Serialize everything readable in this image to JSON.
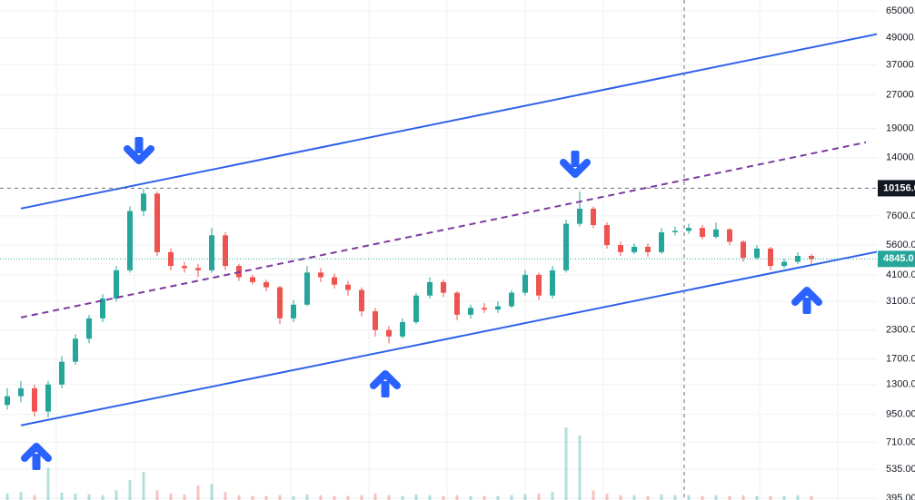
{
  "chart_data": {
    "type": "candlestick",
    "log_scale": true,
    "grid": true,
    "up_color": "#26a69a",
    "down_color": "#ef5350",
    "ylim": [
      388,
      72900
    ],
    "yticks": [
      {
        "value": 65000,
        "label": "65000."
      },
      {
        "value": 49000,
        "label": "49000."
      },
      {
        "value": 37000,
        "label": "37000.0"
      },
      {
        "value": 27000,
        "label": "27000.0"
      },
      {
        "value": 19000,
        "label": "19000."
      },
      {
        "value": 14000,
        "label": "14000.0"
      },
      {
        "value": 7600,
        "label": "7600.00"
      },
      {
        "value": 5600,
        "label": "5600.00"
      },
      {
        "value": 4100,
        "label": "4100.00"
      },
      {
        "value": 3100,
        "label": "3100.00"
      },
      {
        "value": 2300,
        "label": "2300.00"
      },
      {
        "value": 1700,
        "label": "1700.00"
      },
      {
        "value": 1300,
        "label": "1300.00"
      },
      {
        "value": 950,
        "label": "950.00"
      },
      {
        "value": 710,
        "label": "710.00"
      },
      {
        "value": 535,
        "label": "535.00"
      },
      {
        "value": 395,
        "label": "395.00"
      }
    ],
    "open": [
      1050,
      1150,
      1250,
      980,
      1300,
      1650,
      2100,
      2600,
      3200,
      4300,
      8000,
      9600,
      5200,
      4500,
      4400,
      4300,
      6200,
      4500,
      4000,
      3800,
      3600,
      2600,
      3000,
      4200,
      4000,
      3700,
      3500,
      2800,
      2300,
      2150,
      2500,
      3300,
      3800,
      3400,
      2700,
      2900,
      2850,
      2950,
      3400,
      4100,
      3300,
      4300,
      7000,
      8200,
      6900,
      5600,
      5200,
      5500,
      5200,
      6400,
      6500,
      6700,
      6100,
      6600,
      5800,
      4900,
      5400,
      4500,
      4700,
      5000
    ],
    "high": [
      1250,
      1350,
      1300,
      1350,
      1750,
      2200,
      2700,
      3350,
      4500,
      8400,
      10156,
      9800,
      5400,
      4700,
      4600,
      6700,
      6400,
      4600,
      4100,
      3900,
      3650,
      3150,
      4500,
      4400,
      4150,
      3850,
      3600,
      2900,
      2400,
      2600,
      3400,
      4000,
      3900,
      3450,
      3000,
      3050,
      3100,
      3500,
      4300,
      4200,
      4500,
      7300,
      9800,
      8400,
      7100,
      5800,
      5700,
      5700,
      6700,
      6800,
      7000,
      6900,
      7100,
      6700,
      5900,
      5600,
      5500,
      4850,
      5200,
      5100
    ],
    "low": [
      1000,
      1080,
      930,
      920,
      1250,
      1600,
      2000,
      2500,
      3100,
      4200,
      7600,
      5000,
      4300,
      4200,
      4000,
      4200,
      4300,
      3850,
      3700,
      3450,
      2450,
      2500,
      2950,
      3800,
      3550,
      3300,
      2650,
      2150,
      2000,
      2100,
      2450,
      3200,
      3250,
      2550,
      2600,
      2750,
      2750,
      2900,
      3300,
      3150,
      3200,
      4200,
      6800,
      6700,
      5400,
      5000,
      5100,
      4950,
      5100,
      6200,
      6300,
      5950,
      6000,
      5600,
      4700,
      4800,
      4300,
      4400,
      4600,
      4600
    ],
    "close": [
      1150,
      1250,
      980,
      1300,
      1650,
      2100,
      2600,
      3200,
      4300,
      8000,
      9600,
      5200,
      4500,
      4400,
      4300,
      6200,
      4500,
      4000,
      3800,
      3600,
      2600,
      3000,
      4200,
      4000,
      3700,
      3500,
      2800,
      2300,
      2150,
      2500,
      3300,
      3800,
      3400,
      2700,
      2900,
      2850,
      2950,
      3400,
      4100,
      3300,
      4300,
      7000,
      8200,
      6900,
      5600,
      5200,
      5500,
      5200,
      6400,
      6500,
      6700,
      6100,
      6600,
      5800,
      4900,
      5400,
      4500,
      4700,
      5000,
      4845
    ],
    "volume": [
      8,
      10,
      6,
      40,
      9,
      8,
      7,
      6,
      12,
      25,
      35,
      12,
      8,
      7,
      18,
      20,
      10,
      6,
      5,
      5,
      6,
      5,
      7,
      6,
      5,
      5,
      6,
      8,
      6,
      5,
      7,
      6,
      5,
      6,
      5,
      5,
      5,
      6,
      7,
      8,
      10,
      90,
      80,
      12,
      8,
      6,
      6,
      5,
      7,
      6,
      6,
      5,
      6,
      5,
      6,
      5,
      5,
      5,
      6,
      5
    ],
    "trendlines": [
      {
        "x": [
          1,
          64
        ],
        "y": [
          8210,
          51300
        ],
        "color": "#2f62e8",
        "dashed": false
      },
      {
        "x": [
          1,
          64
        ],
        "y": [
          848,
          5250
        ],
        "color": "#2f62e8",
        "dashed": false
      },
      {
        "x": [
          1,
          63
        ],
        "y": [
          2624,
          16420
        ],
        "color": "#7e3a9e",
        "dashed": true
      }
    ],
    "crosshair_price": {
      "value": 10156,
      "label": "10156.0"
    },
    "last_price": {
      "value": 4845,
      "label": "4845.0"
    }
  }
}
